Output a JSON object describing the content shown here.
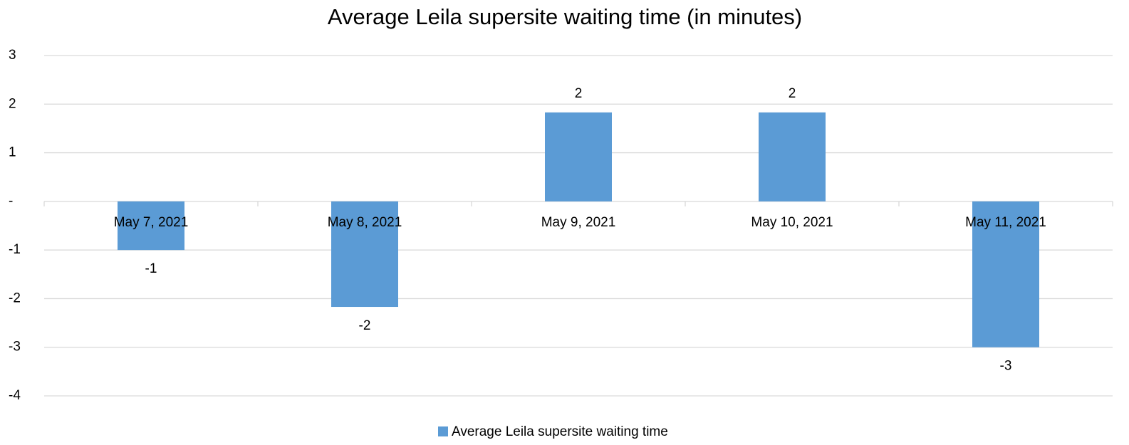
{
  "chart_data": {
    "type": "bar",
    "title": "Average Leila supersite waiting time (in minutes)",
    "categories": [
      "May 7, 2021",
      "May 8, 2021",
      "May 9, 2021",
      "May 10, 2021",
      "May 11, 2021"
    ],
    "series": [
      {
        "name": "Average Leila supersite waiting time",
        "color": "#5b9bd5",
        "values": [
          -1,
          -2.17,
          1.83,
          1.83,
          -3
        ],
        "value_labels": [
          "-1",
          "-2",
          "2",
          "2",
          "-3"
        ]
      }
    ],
    "ylim": [
      -4,
      3
    ],
    "yticks": [
      -4,
      -3,
      -2,
      -1,
      {
        "value": 0,
        "label": "-"
      },
      1,
      2,
      3
    ],
    "grid": true,
    "legend": "bottom"
  }
}
